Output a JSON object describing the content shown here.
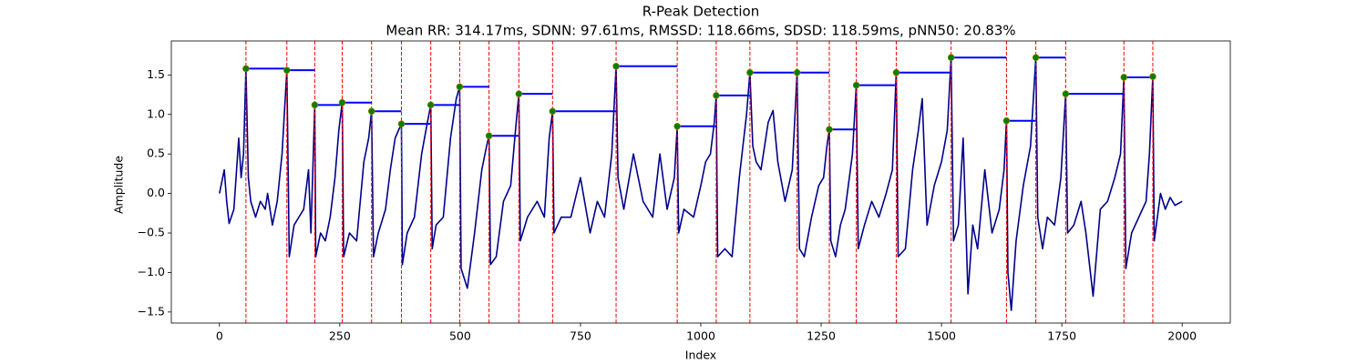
{
  "chart_data": {
    "type": "line",
    "title": "R-Peak Detection",
    "subtitle": "Mean RR: 314.17ms, SDNN: 97.61ms, RMSSD: 118.66ms, SDSD: 118.59ms, pNN50: 20.83%",
    "x_label": "Index",
    "y_label": "Amplitude",
    "xlim": [
      -100,
      2100
    ],
    "ylim": [
      -1.64,
      1.93
    ],
    "xticks": [
      0,
      250,
      500,
      750,
      1000,
      1250,
      1500,
      1750,
      2000
    ],
    "yticks": [
      {
        "value": -1.5,
        "label": "−1.5"
      },
      {
        "value": -1.0,
        "label": "−1.0"
      },
      {
        "value": -0.5,
        "label": "−0.5"
      },
      {
        "value": 0.0,
        "label": "0.0"
      },
      0.5,
      {
        "value": 1.0,
        "label": "1.0"
      },
      1.5
    ],
    "signal": {
      "color": "#00008b",
      "x": [
        0,
        10,
        15,
        20,
        30,
        40,
        45,
        50,
        55,
        60,
        65,
        75,
        85,
        95,
        100,
        110,
        120,
        130,
        140,
        145,
        155,
        165,
        175,
        185,
        190,
        198,
        200,
        210,
        220,
        230,
        240,
        248,
        255,
        258,
        270,
        285,
        300,
        310,
        316,
        320,
        330,
        345,
        355,
        365,
        372,
        378,
        380,
        390,
        405,
        420,
        432,
        439,
        442,
        450,
        465,
        480,
        492,
        499,
        502,
        515,
        530,
        545,
        555,
        560,
        563,
        575,
        590,
        605,
        615,
        622,
        625,
        640,
        660,
        675,
        685,
        692,
        695,
        710,
        730,
        750,
        770,
        785,
        800,
        815,
        824,
        828,
        840,
        860,
        880,
        900,
        915,
        930,
        945,
        951,
        954,
        965,
        985,
        1000,
        1010,
        1020,
        1028,
        1032,
        1035,
        1050,
        1065,
        1080,
        1095,
        1102,
        1108,
        1115,
        1125,
        1140,
        1150,
        1160,
        1175,
        1190,
        1200,
        1205,
        1215,
        1230,
        1245,
        1255,
        1262,
        1267,
        1270,
        1280,
        1290,
        1300,
        1315,
        1323,
        1327,
        1340,
        1355,
        1370,
        1385,
        1398,
        1406,
        1410,
        1425,
        1440,
        1452,
        1460,
        1470,
        1485,
        1500,
        1512,
        1520,
        1525,
        1535,
        1545,
        1555,
        1565,
        1575,
        1590,
        1605,
        1620,
        1630,
        1635,
        1638,
        1645,
        1655,
        1670,
        1685,
        1696,
        1700,
        1710,
        1720,
        1735,
        1748,
        1758,
        1762,
        1775,
        1790,
        1800,
        1815,
        1830,
        1845,
        1860,
        1872,
        1879,
        1883,
        1895,
        1910,
        1925,
        1932,
        1939,
        1942,
        1955,
        1965,
        1975,
        1985,
        2000
      ],
      "values": [
        0,
        0.3,
        -0.1,
        -0.38,
        -0.2,
        0.7,
        0.2,
        0.5,
        1.58,
        0.2,
        -0.1,
        -0.3,
        -0.1,
        -0.2,
        0.0,
        -0.4,
        -0.1,
        0.5,
        1.56,
        -0.8,
        -0.4,
        -0.3,
        -0.2,
        0.3,
        -0.5,
        1.12,
        -0.8,
        -0.5,
        -0.6,
        -0.3,
        0.2,
        0.8,
        1.15,
        -0.8,
        -0.5,
        -0.6,
        0.4,
        0.7,
        1.04,
        -0.8,
        -0.5,
        -0.2,
        0.3,
        0.7,
        0.8,
        0.88,
        -0.9,
        -0.5,
        -0.3,
        0.5,
        0.9,
        1.12,
        -0.7,
        -0.4,
        -0.3,
        0.7,
        1.2,
        1.35,
        -0.95,
        -1.2,
        -0.5,
        0.3,
        0.6,
        0.73,
        -0.9,
        -0.8,
        -0.1,
        0.1,
        0.8,
        1.26,
        -0.6,
        -0.3,
        -0.1,
        -0.3,
        0.7,
        1.04,
        -0.5,
        -0.3,
        -0.3,
        0.2,
        -0.5,
        -0.1,
        -0.3,
        0.5,
        1.61,
        0.2,
        -0.2,
        0.5,
        -0.1,
        -0.3,
        0.5,
        -0.2,
        0.2,
        0.85,
        -0.5,
        -0.2,
        -0.3,
        0.1,
        0.4,
        0.5,
        0.9,
        1.24,
        -0.8,
        -0.7,
        -0.8,
        0.2,
        1.0,
        1.53,
        0.6,
        0.4,
        0.3,
        0.9,
        1.05,
        0.4,
        -0.1,
        0.3,
        1.53,
        -0.7,
        -0.8,
        -0.3,
        0.1,
        0.2,
        0.6,
        0.81,
        -0.6,
        -0.8,
        -0.4,
        -0.2,
        0.5,
        1.37,
        -0.7,
        -0.4,
        -0.1,
        -0.3,
        0.0,
        0.3,
        1.53,
        -0.8,
        -0.7,
        0.3,
        0.8,
        1.2,
        -0.4,
        0.1,
        0.4,
        0.8,
        1.72,
        -0.6,
        -0.4,
        0.7,
        -1.27,
        -0.4,
        -0.7,
        0.3,
        -0.5,
        -0.2,
        0.3,
        0.92,
        -1.0,
        -1.48,
        -0.6,
        0.1,
        0.6,
        1.72,
        -0.3,
        -0.7,
        -0.3,
        -0.4,
        0.2,
        1.26,
        -0.5,
        -0.4,
        -0.1,
        -0.5,
        -1.3,
        -0.2,
        -0.1,
        0.2,
        0.5,
        1.47,
        -0.95,
        -0.5,
        -0.3,
        -0.1,
        0.5,
        1.48,
        -0.6,
        0.0,
        -0.2,
        -0.05,
        -0.15,
        -0.1
      ]
    },
    "peaks": {
      "color": "#008000",
      "line_color": "#ff0000",
      "rr_color": "#0000ff",
      "x": [
        55,
        140,
        198,
        255,
        316,
        378,
        439,
        499,
        560,
        622,
        692,
        824,
        951,
        1032,
        1102,
        1200,
        1267,
        1323,
        1406,
        1520,
        1635,
        1696,
        1758,
        1879,
        1939
      ],
      "values": [
        1.58,
        1.56,
        1.12,
        1.15,
        1.04,
        0.88,
        1.12,
        1.35,
        0.73,
        1.26,
        1.04,
        1.61,
        0.85,
        1.24,
        1.53,
        1.53,
        0.81,
        1.37,
        1.53,
        1.72,
        0.92,
        1.72,
        1.26,
        1.47,
        1.48
      ]
    }
  }
}
